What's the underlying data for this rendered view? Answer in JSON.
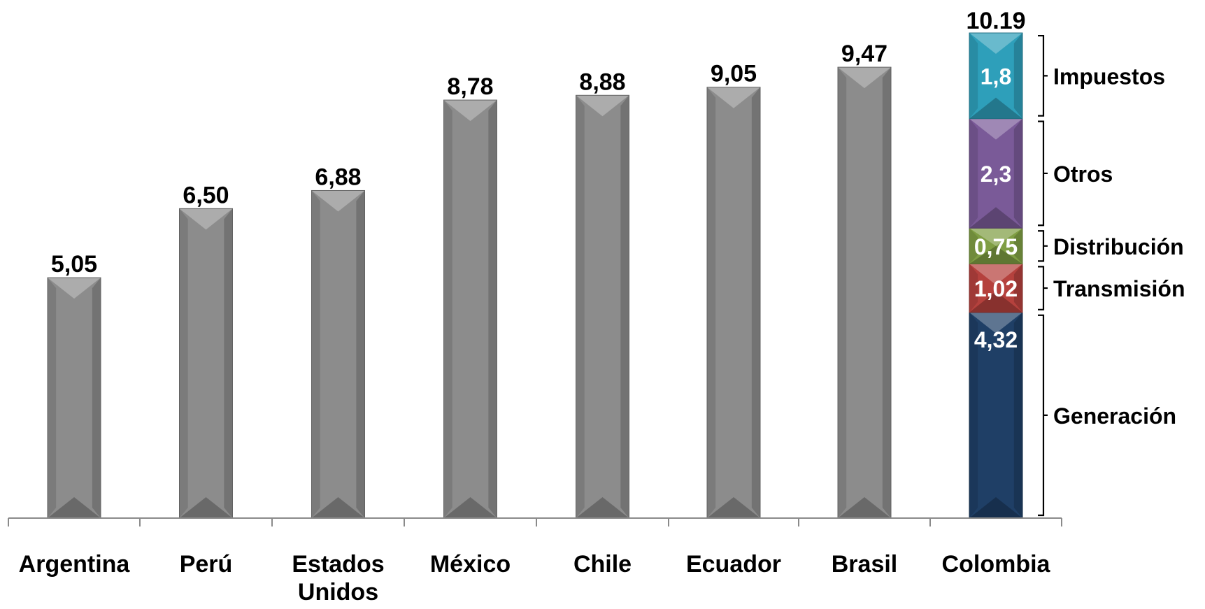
{
  "chart_data": {
    "type": "bar",
    "title": "",
    "xlabel": "",
    "ylabel": "",
    "ylim": [
      0,
      10.19
    ],
    "grid": false,
    "categories": [
      "Argentina",
      "Perú",
      "Estados Unidos",
      "México",
      "Chile",
      "Ecuador",
      "Brasil",
      "Colombia"
    ],
    "category_labels": [
      [
        "Argentina"
      ],
      [
        "Perú"
      ],
      [
        "Estados",
        "Unidos"
      ],
      [
        "México"
      ],
      [
        "Chile"
      ],
      [
        "Ecuador"
      ],
      [
        "Brasil"
      ],
      [
        "Colombia"
      ]
    ],
    "values": [
      5.05,
      6.5,
      6.88,
      8.78,
      8.88,
      9.05,
      9.47,
      null
    ],
    "value_labels": [
      "5,05",
      "6,50",
      "6,88",
      "8,78",
      "8,88",
      "9,05",
      "9,47",
      "10.19"
    ],
    "bar_color": "#8c8c8c",
    "stacked": {
      "category": "Colombia",
      "total_label": "10.19",
      "segments": [
        {
          "name": "Generación",
          "value": 4.32,
          "label": "4,32",
          "color": "#1f3f66"
        },
        {
          "name": "Transmisión",
          "value": 1.02,
          "label": "1,02",
          "color": "#b5413d"
        },
        {
          "name": "Distribución",
          "value": 0.75,
          "label": "0,75",
          "color": "#7f9e43"
        },
        {
          "name": "Otros",
          "value": 2.3,
          "label": "2,3",
          "color": "#7a5a98"
        },
        {
          "name": "Impuestos",
          "value": 1.8,
          "label": "1,8",
          "color": "#2e9fba"
        }
      ]
    }
  }
}
